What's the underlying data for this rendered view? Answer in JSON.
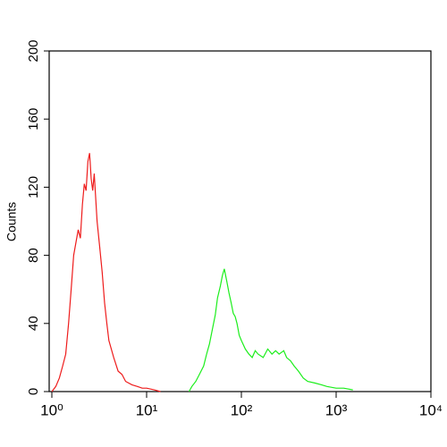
{
  "chart_data": {
    "type": "line",
    "xscale": "log",
    "ylabel": "Counts",
    "xlim": [
      1,
      10000
    ],
    "ylim": [
      0,
      200
    ],
    "xticks": [
      {
        "value": 1,
        "label": "10⁰"
      },
      {
        "value": 10,
        "label": "10¹"
      },
      {
        "value": 100,
        "label": "10²"
      },
      {
        "value": 1000,
        "label": "10³"
      },
      {
        "value": 10000,
        "label": "10⁴"
      }
    ],
    "yticks": [
      0,
      40,
      80,
      120,
      160,
      200
    ],
    "series": [
      {
        "color": "#ee1c1c",
        "x": [
          1.0,
          1.1,
          1.2,
          1.3,
          1.4,
          1.5,
          1.6,
          1.7,
          1.8,
          1.9,
          2.0,
          2.1,
          2.2,
          2.3,
          2.4,
          2.5,
          2.6,
          2.7,
          2.8,
          3.0,
          3.2,
          3.4,
          3.6,
          3.8,
          4.0,
          4.5,
          5.0,
          5.5,
          6.0,
          7.0,
          8.0,
          9.0,
          10,
          12,
          14
        ],
        "values": [
          0,
          3,
          8,
          15,
          22,
          40,
          60,
          80,
          88,
          95,
          90,
          110,
          122,
          118,
          135,
          140,
          125,
          118,
          128,
          100,
          85,
          70,
          52,
          40,
          30,
          20,
          12,
          10,
          6,
          4,
          3,
          2,
          2,
          1,
          0
        ]
      },
      {
        "color": "#1cee1c",
        "x": [
          28,
          30,
          33,
          36,
          40,
          43,
          46,
          50,
          53,
          56,
          60,
          63,
          66,
          70,
          74,
          78,
          82,
          86,
          90,
          95,
          100,
          110,
          120,
          130,
          140,
          150,
          170,
          190,
          210,
          230,
          250,
          280,
          300,
          330,
          360,
          400,
          450,
          500,
          600,
          700,
          800,
          1000,
          1200,
          1500
        ],
        "values": [
          0,
          3,
          6,
          10,
          15,
          22,
          28,
          38,
          45,
          55,
          62,
          68,
          72,
          65,
          58,
          52,
          46,
          44,
          40,
          33,
          30,
          25,
          22,
          20,
          24,
          22,
          20,
          25,
          22,
          24,
          22,
          24,
          20,
          18,
          15,
          12,
          8,
          6,
          5,
          4,
          3,
          2,
          2,
          1
        ]
      }
    ]
  }
}
